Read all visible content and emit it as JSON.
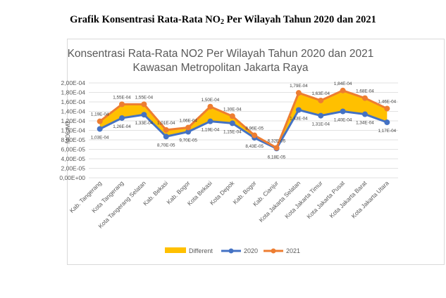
{
  "caption_prefix": "Grafik Konsentrasi Rata-Rata NO",
  "caption_sub": "2",
  "caption_suffix": " Per Wilayah Tahun 2020 dan 2021",
  "colors": {
    "area": "#ffc000",
    "line2020": "#4472c4",
    "line2021": "#ed7d31",
    "grid": "#d9d9d9"
  },
  "chart_data": {
    "type": "line",
    "title": "Konsentrasi Rata-Rata NO2 Per Wilayah Tahun 2020 dan 2021",
    "subtitle": "Kawasan Metropolitan Jakarta Raya",
    "ylabel": "MOL/M2",
    "ylim": [
      0,
      0.0002
    ],
    "yticks": [
      "0,00E+00",
      "2,00E-05",
      "4,00E-05",
      "6,00E-05",
      "8,00E-05",
      "1,00E-04",
      "1,20E-04",
      "1,40E-04",
      "1,60E-04",
      "1,80E-04",
      "2,00E-04"
    ],
    "grid": true,
    "legend_position": "bottom",
    "categories": [
      "Kab. Tangerang",
      "Kota Tangerang",
      "Kota Tangerang Selatan",
      "Kab. Bekasi",
      "Kab. Bogor",
      "Kota Bekasi",
      "Kota Depok",
      "Kab. Bogor",
      "Kab. Cianjur",
      "Kota Jakarta Selatan",
      "Kota Jakarta Timur",
      "Kota Jakarta Pusat",
      "Kota Jakarta Barat",
      "Kota Jakarta Utara"
    ],
    "series": [
      {
        "name": "Different",
        "kind": "area-between"
      },
      {
        "name": "2020",
        "values": [
          0.000103,
          0.000126,
          0.000133,
          8.7e-05,
          9.7e-05,
          0.000119,
          0.000115,
          8.43e-05,
          6.18e-05,
          0.000143,
          0.000131,
          0.00014,
          0.000134,
          0.000117
        ],
        "labels": [
          "1,03E-04",
          "1,26E-04",
          "1,33E-04",
          "8,70E-05",
          "9,70E-05",
          "1,19E-04",
          "1,15E-04",
          "8,43E-05",
          "6,18E-05",
          "1,43E-04",
          "1,31E-04",
          "1,40E-04",
          "1,34E-04",
          "1,17E-04"
        ]
      },
      {
        "name": "2021",
        "values": [
          0.000119,
          0.000155,
          0.000155,
          0.000101,
          0.000106,
          0.00015,
          0.00013,
          8.96e-05,
          6.32e-05,
          0.000179,
          0.000163,
          0.000184,
          0.000168,
          0.000146
        ],
        "labels": [
          "1,19E-04",
          "1,55E-04",
          "1,55E-04",
          "1,01E-04",
          "1,06E-04",
          "1,50E-04",
          "1,30E-04",
          "8,96E-05",
          "6,32E-05",
          "1,79E-04",
          "1,63E-04",
          "1,84E-04",
          "1,68E-04",
          "1,46E-04"
        ]
      }
    ]
  }
}
